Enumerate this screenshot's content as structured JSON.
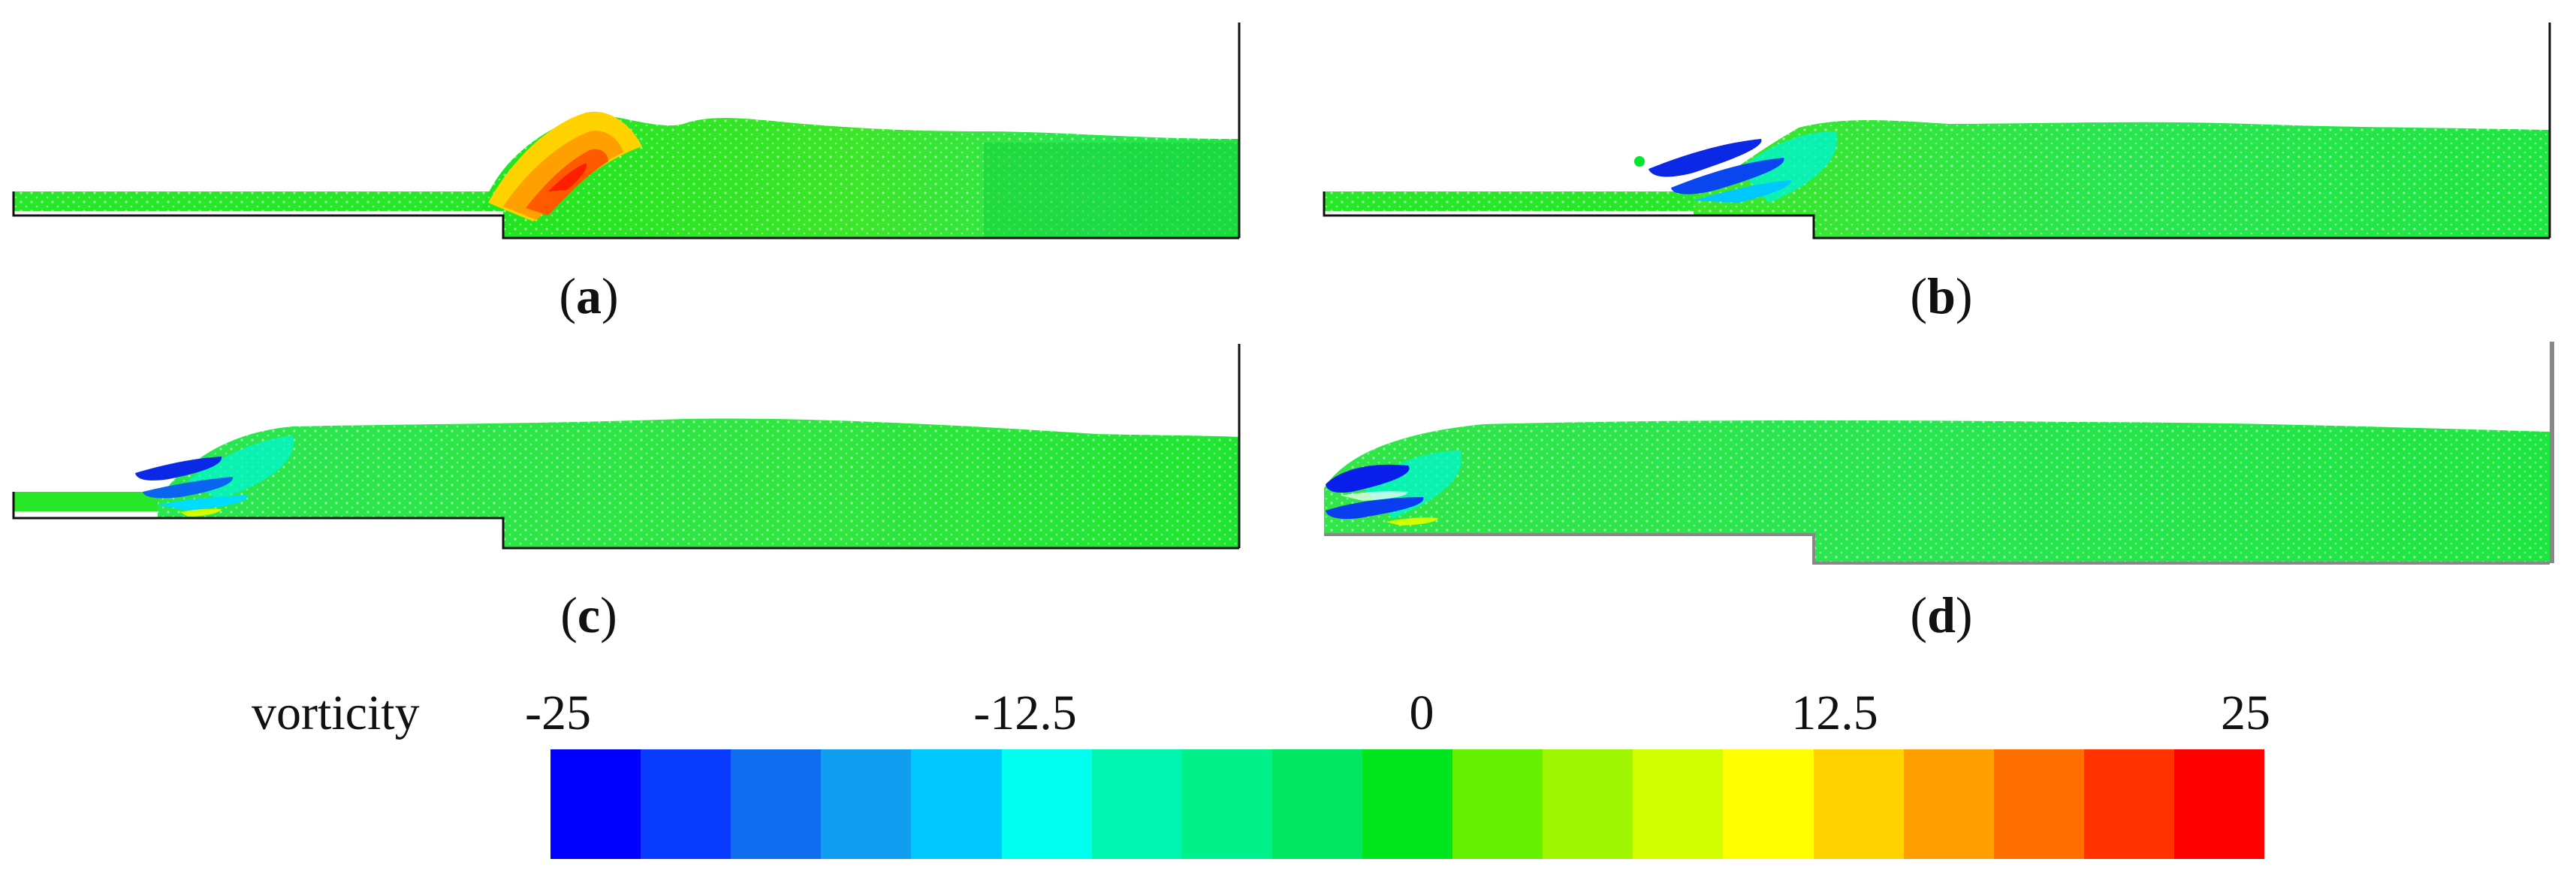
{
  "panels": [
    {
      "id": "a",
      "label": "a"
    },
    {
      "id": "b",
      "label": "b"
    },
    {
      "id": "c",
      "label": "c"
    },
    {
      "id": "d",
      "label": "d"
    }
  ],
  "colorbar": {
    "title": "vorticity",
    "ticks": [
      "-25",
      "-12.5",
      "0",
      "12.5",
      "25"
    ],
    "colors": [
      "#0000ff",
      "#0a3cff",
      "#0f6ef0",
      "#0f9ef0",
      "#00c8ff",
      "#00ffee",
      "#00f5b0",
      "#00f08a",
      "#00e660",
      "#00e61e",
      "#64f000",
      "#a0f500",
      "#d2ff00",
      "#ffff00",
      "#ffd200",
      "#ffa000",
      "#ff6e00",
      "#ff3200",
      "#ff0000"
    ]
  }
}
